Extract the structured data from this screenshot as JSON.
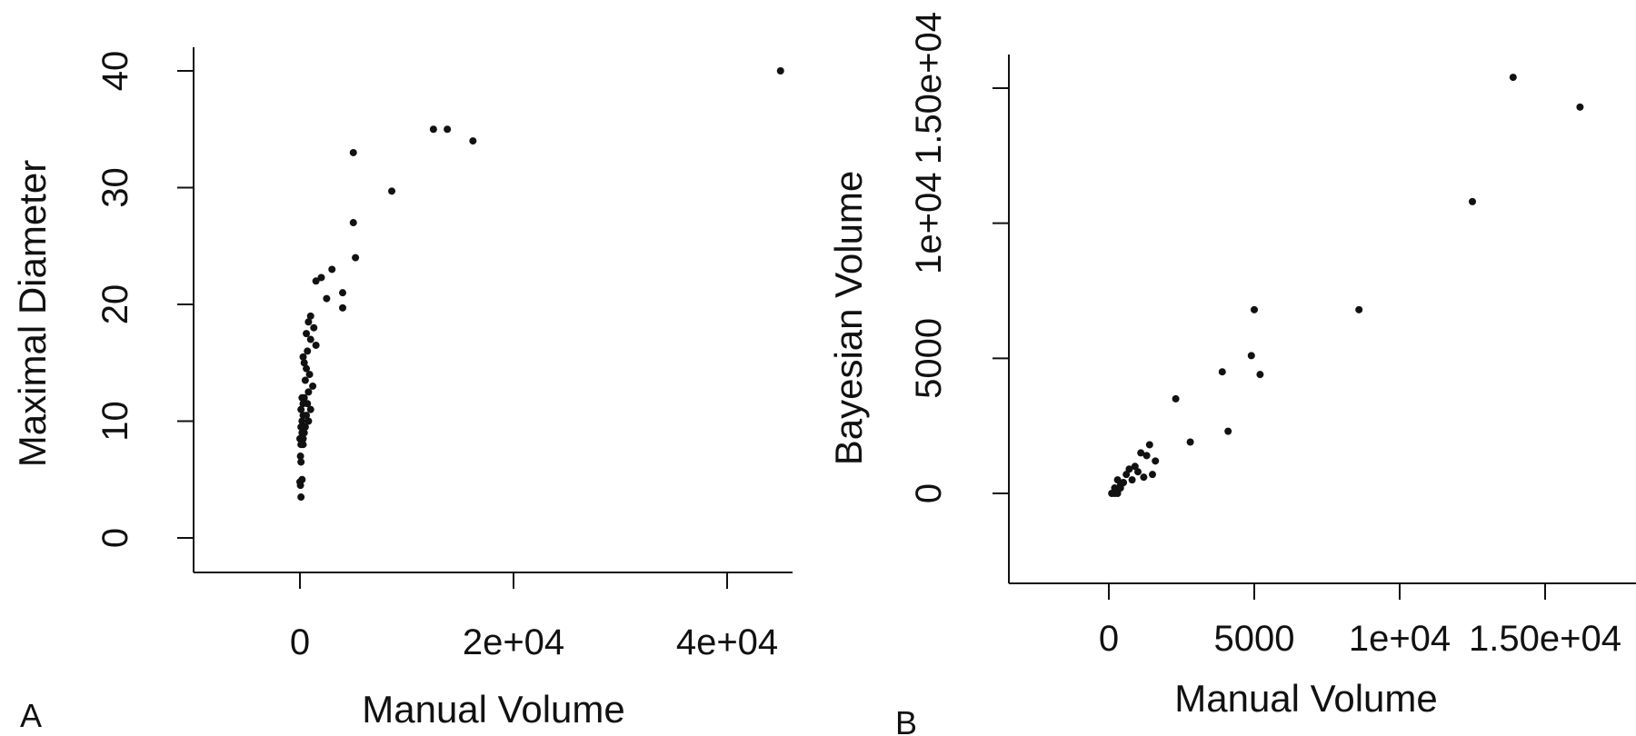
{
  "colors": {
    "background": "#ffffff",
    "ink": "#111111"
  },
  "chart_data": [
    {
      "panel": "A",
      "type": "scatter",
      "xlabel": "Manual Volume",
      "ylabel": "Maximal Diameter",
      "xlim": [
        -10000,
        48500
      ],
      "ylim": [
        -4,
        42
      ],
      "x_ticks": [
        {
          "value": 0,
          "label": "0"
        },
        {
          "value": 20000,
          "label": "2e+04"
        },
        {
          "value": 40000,
          "label": "4e+04"
        }
      ],
      "y_ticks": [
        {
          "value": 0,
          "label": "0"
        },
        {
          "value": 10,
          "label": "10"
        },
        {
          "value": 20,
          "label": "20"
        },
        {
          "value": 30,
          "label": "30"
        },
        {
          "value": 40,
          "label": "40"
        }
      ],
      "grid": false,
      "x": [
        45000,
        12500,
        13800,
        16200,
        5000,
        8600,
        5000,
        5200,
        3000,
        4000,
        4000,
        2000,
        1500,
        2500,
        1000,
        800,
        1300,
        600,
        1000,
        1500,
        700,
        300,
        400,
        600,
        900,
        500,
        1200,
        800,
        200,
        400,
        300,
        700,
        1000,
        100,
        300,
        600,
        800,
        200,
        500,
        100,
        400,
        200,
        300,
        0,
        100,
        300,
        50,
        100,
        200,
        0,
        50,
        100
      ],
      "y": [
        40.0,
        35.0,
        35.0,
        34.0,
        33.0,
        29.7,
        27.0,
        24.0,
        23.0,
        21.0,
        19.7,
        22.3,
        22.0,
        20.5,
        19.0,
        18.5,
        18.0,
        17.5,
        17.0,
        16.5,
        16.0,
        15.5,
        15.0,
        14.5,
        14.0,
        13.5,
        13.0,
        12.5,
        12.0,
        12.0,
        11.5,
        11.5,
        11.0,
        11.0,
        10.5,
        10.5,
        10.0,
        10.0,
        9.5,
        9.5,
        9.0,
        9.0,
        8.5,
        8.5,
        8.0,
        8.0,
        7.0,
        6.5,
        5.0,
        4.8,
        4.5,
        3.5
      ]
    },
    {
      "panel": "B",
      "type": "scatter",
      "xlabel": "Manual Volume",
      "ylabel": "Bayesian Volume",
      "xlim": [
        -3500,
        17500
      ],
      "ylim": [
        -3500,
        16500
      ],
      "x_ticks": [
        {
          "value": 0,
          "label": "0"
        },
        {
          "value": 5000,
          "label": "5000"
        },
        {
          "value": 10000,
          "label": "1e+04"
        },
        {
          "value": 15000,
          "label": "1.50e+04"
        }
      ],
      "y_ticks": [
        {
          "value": 0,
          "label": "0"
        },
        {
          "value": 5000,
          "label": "5000"
        },
        {
          "value": 10000,
          "label": "1e+04"
        },
        {
          "value": 15000,
          "label": "1.50e+04"
        }
      ],
      "grid": false,
      "x": [
        13900,
        16200,
        12500,
        8600,
        5000,
        4900,
        5200,
        3900,
        4100,
        2300,
        2800,
        1400,
        1300,
        1100,
        1600,
        1500,
        900,
        1000,
        700,
        1200,
        600,
        800,
        500,
        300,
        400,
        200,
        300,
        100,
        200,
        300,
        400,
        500
      ],
      "y": [
        15400,
        14300,
        10800,
        6800,
        6800,
        5100,
        4400,
        4500,
        2300,
        3500,
        1900,
        1800,
        1400,
        1500,
        1200,
        700,
        1000,
        800,
        900,
        600,
        700,
        500,
        400,
        500,
        300,
        200,
        100,
        0,
        0,
        0,
        200,
        400
      ]
    }
  ]
}
